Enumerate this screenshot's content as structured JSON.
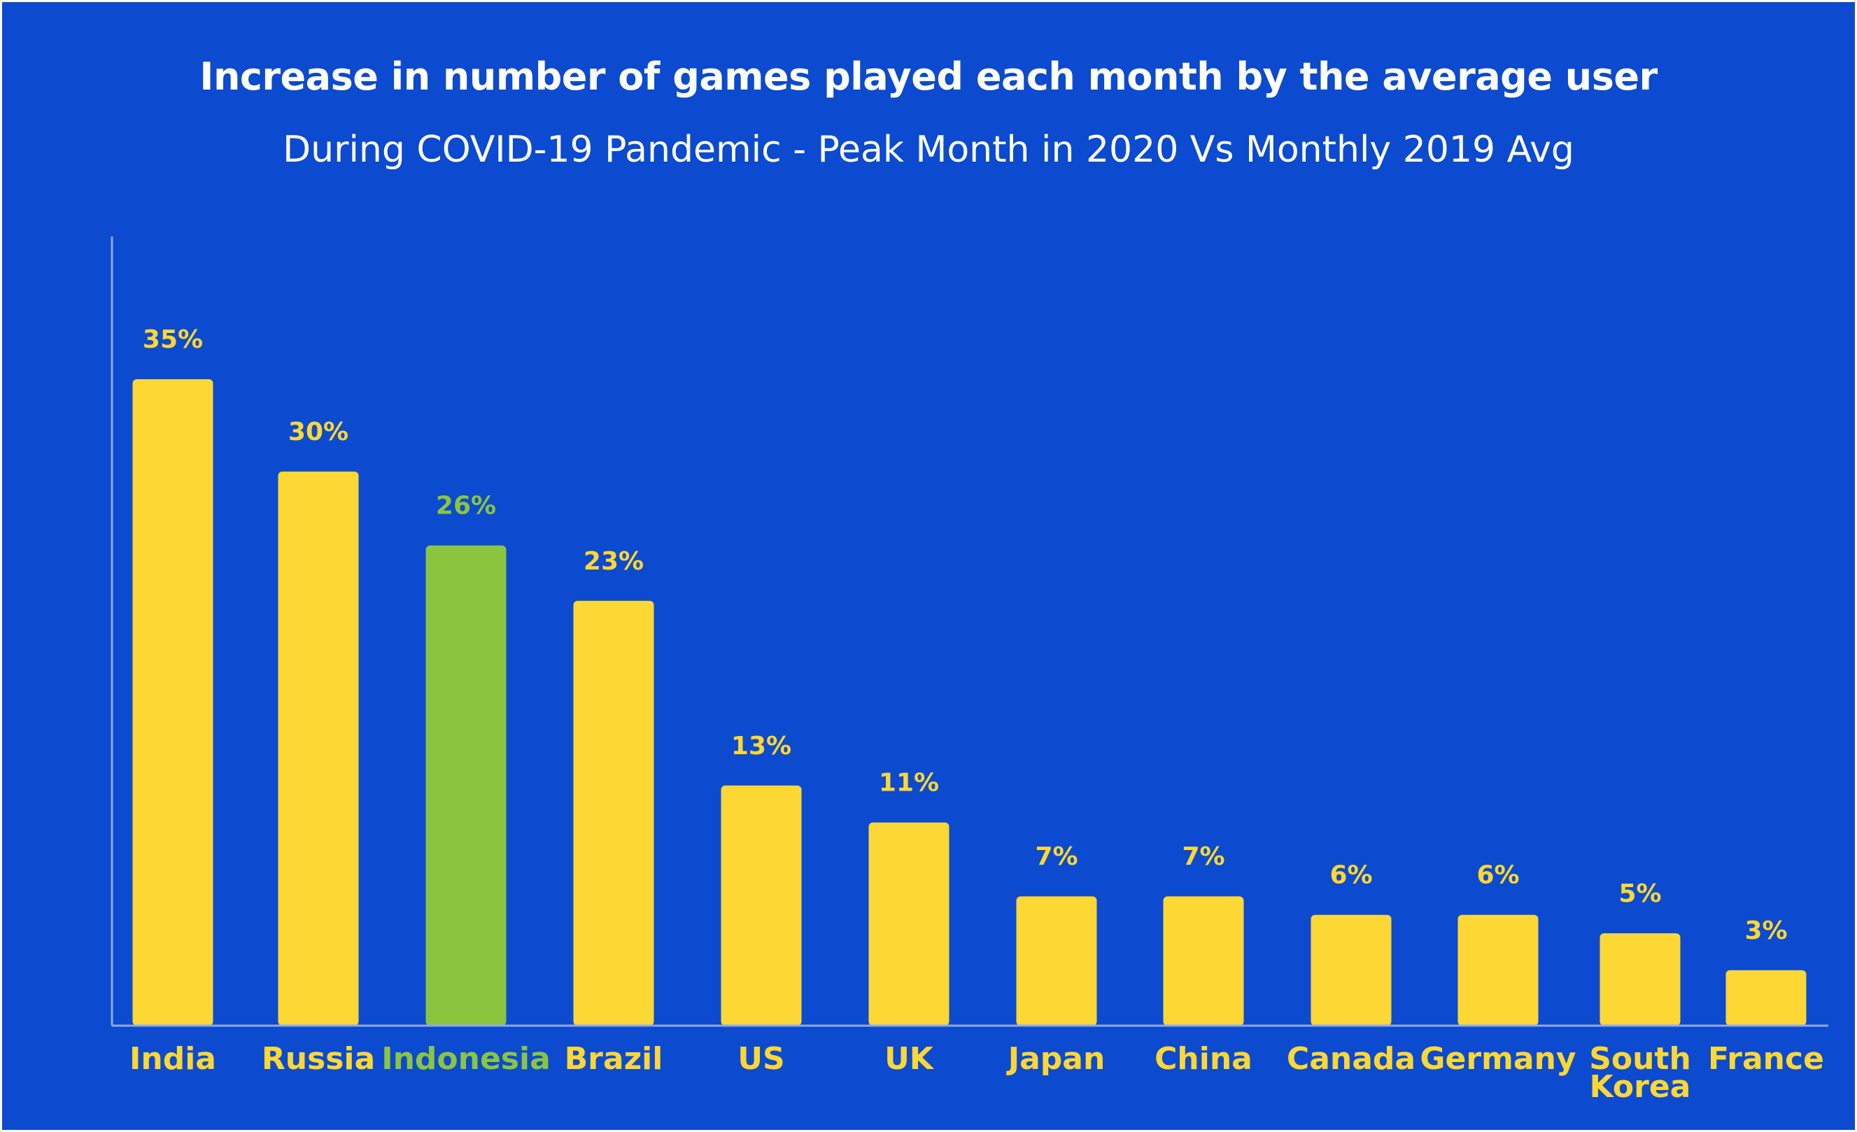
{
  "chart_data": {
    "type": "bar",
    "title": "Increase in number of games played each month by the average user",
    "subtitle": "During COVID-19 Pandemic - Peak Month in 2020 Vs Monthly 2019 Avg",
    "xlabel": "",
    "ylabel": "",
    "categories": [
      "India",
      "Russia",
      "Indonesia",
      "Brazil",
      "US",
      "UK",
      "Japan",
      "China",
      "Canada",
      "Germany",
      "South Korea",
      "France"
    ],
    "values": [
      35,
      30,
      26,
      23,
      13,
      11,
      7,
      7,
      6,
      6,
      5,
      3
    ],
    "value_labels": [
      "35%",
      "30%",
      "26%",
      "23%",
      "13%",
      "11%",
      "7%",
      "7%",
      "6%",
      "6%",
      "5%",
      "3%"
    ],
    "highlight": "Indonesia",
    "ylim": [
      0,
      40
    ],
    "grid": false,
    "legend": "none",
    "colors": {
      "background": "#0c4acf",
      "bar": "#fdd733",
      "highlight": "#8bc53f",
      "text": "#ffffff",
      "axis": "#8fa8e6"
    }
  }
}
